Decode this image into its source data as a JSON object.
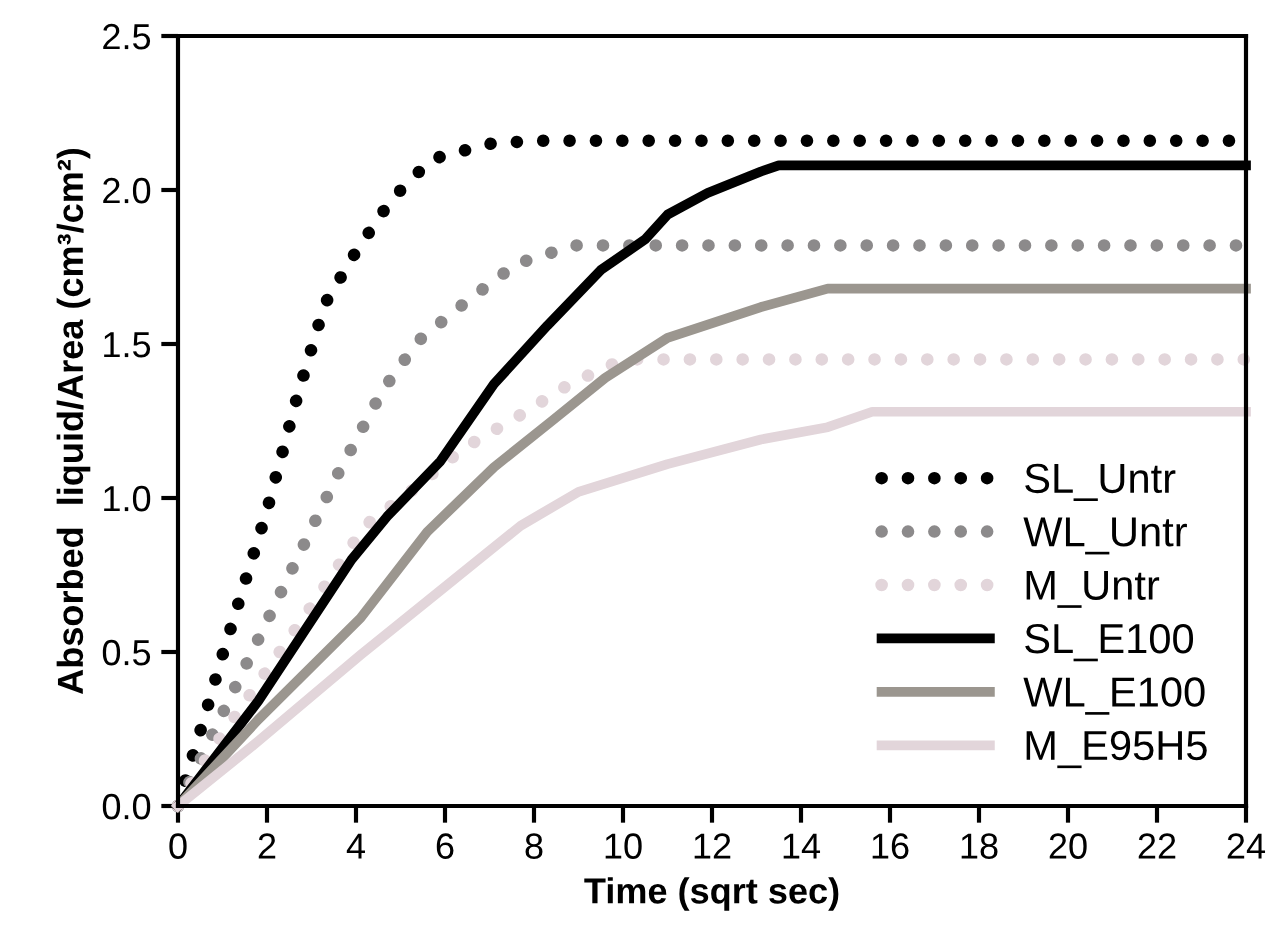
{
  "chart_data": {
    "type": "line",
    "xlabel": "Time (sqrt sec)",
    "ylabel": "Absorbed  liquid/Area (cm³/cm²)",
    "xlim": [
      0,
      24
    ],
    "xticks": [
      0,
      2,
      4,
      6,
      8,
      10,
      12,
      14,
      16,
      18,
      20,
      22,
      24
    ],
    "ylim": [
      0,
      2.5
    ],
    "yticks": [
      {
        "value": 0,
        "label": "0.0"
      },
      {
        "value": 0.5,
        "label": "0.5"
      },
      {
        "value": 1,
        "label": "1.0"
      },
      {
        "value": 1.5,
        "label": "1.5"
      },
      {
        "value": 2,
        "label": "2.0"
      },
      {
        "value": 2.5,
        "label": "2.5"
      }
    ],
    "grid": false,
    "legend": "bottom right",
    "marker": "none",
    "series": [
      {
        "name": "SL_Untr",
        "color": "#000000",
        "line_style": "dotted",
        "x": [
          0,
          0.2,
          0.6,
          1,
          2,
          2.7,
          3.3,
          4,
          4.8,
          5.7,
          7,
          8,
          24
        ],
        "values": [
          0,
          0.1,
          0.29,
          0.49,
          0.96,
          1.34,
          1.63,
          1.8,
          1.97,
          2.1,
          2.15,
          2.16,
          2.16
        ]
      },
      {
        "name": "WL_Untr",
        "color": "#8c8a8b",
        "line_style": "dotted",
        "x": [
          0,
          0.9,
          1.8,
          2.7,
          3.6,
          4.6,
          5.4,
          6.5,
          7.6,
          8.9,
          24
        ],
        "values": [
          0,
          0.27,
          0.54,
          0.81,
          1.08,
          1.35,
          1.51,
          1.64,
          1.76,
          1.82,
          1.82
        ]
      },
      {
        "name": "M_Untr",
        "color": "#e2d5da",
        "line_style": "dotted",
        "x": [
          0,
          0.7,
          1.9,
          3.1,
          4.2,
          5.4,
          6.4,
          7.7,
          8.8,
          10,
          24
        ],
        "values": [
          0,
          0.17,
          0.42,
          0.67,
          0.91,
          1.04,
          1.16,
          1.27,
          1.37,
          1.45,
          1.45
        ]
      },
      {
        "name": "SL_E100",
        "color": "#000000",
        "line_style": "solid",
        "x": [
          0,
          1.8,
          3.9,
          4.7,
          5.9,
          7.1,
          8.3,
          9.5,
          10.5,
          11,
          11.9,
          13.1,
          13.5,
          24
        ],
        "values": [
          0,
          0.34,
          0.8,
          0.94,
          1.12,
          1.37,
          1.56,
          1.74,
          1.84,
          1.92,
          1.99,
          2.06,
          2.08,
          2.08
        ]
      },
      {
        "name": "WL_E100",
        "color": "#9b968f",
        "line_style": "solid",
        "x": [
          0,
          1.8,
          4.1,
          5.6,
          7.1,
          8.4,
          9.6,
          11,
          13.1,
          14.6,
          24
        ],
        "values": [
          0,
          0.28,
          0.61,
          0.89,
          1.1,
          1.25,
          1.39,
          1.52,
          1.62,
          1.68,
          1.68
        ]
      },
      {
        "name": "M_E95H5",
        "color": "#e2d5da",
        "line_style": "solid",
        "x": [
          0,
          1.8,
          4.1,
          5.9,
          7.7,
          9,
          11,
          13.1,
          14.6,
          15.6,
          24
        ],
        "values": [
          0,
          0.21,
          0.49,
          0.7,
          0.91,
          1.02,
          1.11,
          1.19,
          1.23,
          1.28,
          1.28
        ]
      }
    ]
  }
}
